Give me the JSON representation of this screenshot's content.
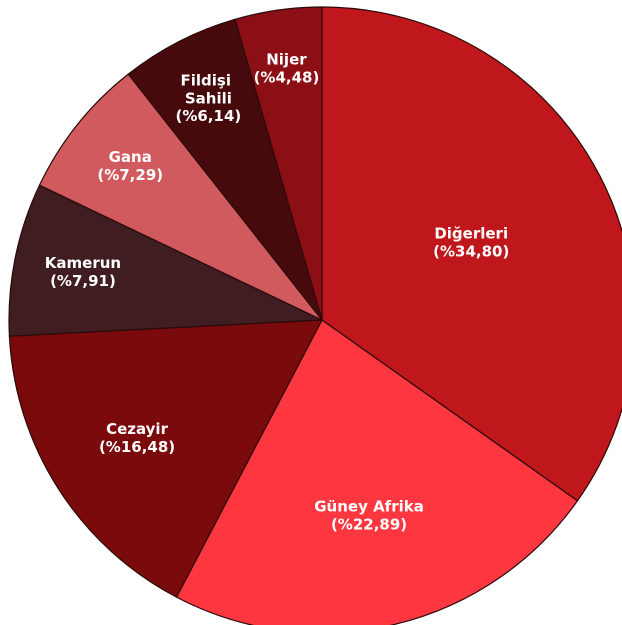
{
  "chart_data": {
    "type": "pie",
    "categories": [
      "Diğerleri",
      "Güney Afrika",
      "Cezayir",
      "Kamerun",
      "Gana",
      "Fildişi Sahili",
      "Nijer"
    ],
    "values": [
      34.8,
      22.89,
      16.48,
      7.91,
      7.29,
      6.14,
      4.48
    ],
    "value_labels": [
      "(%34,80)",
      "(%22,89)",
      "(%16,48)",
      "(%7,91)",
      "(%7,29)",
      "(%6,14)",
      "(%4,48)"
    ],
    "colors": [
      "#c0171c",
      "#fe3640",
      "#7a0a0b",
      "#3f1d20",
      "#d05a5e",
      "#460a0c",
      "#8b0f14"
    ]
  }
}
